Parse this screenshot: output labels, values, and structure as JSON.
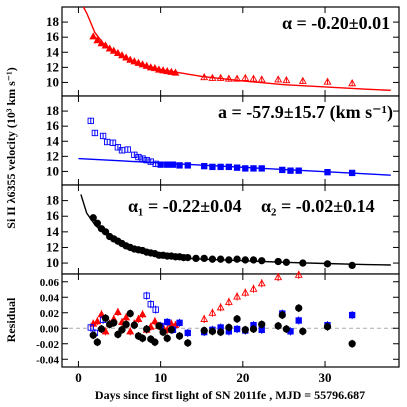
{
  "chart_data": [
    {
      "panel": 1,
      "type": "scatter",
      "color": "#ff0000",
      "annotation": "α = -0.20±0.01",
      "ylim": [
        8.2,
        20
      ],
      "yticks": [
        10,
        12,
        14,
        16,
        18
      ],
      "fit": {
        "model": "power-law",
        "points": [
          [
            0.6,
            20
          ],
          [
            1,
            19.2
          ],
          [
            2,
            16.6
          ],
          [
            3,
            15.2
          ],
          [
            4,
            14.3
          ],
          [
            5,
            13.6
          ],
          [
            7,
            12.6
          ],
          [
            10,
            11.7
          ],
          [
            15,
            10.8
          ],
          [
            20,
            10.2
          ],
          [
            25,
            9.7
          ],
          [
            30,
            9.4
          ],
          [
            35,
            9.1
          ],
          [
            38,
            8.95
          ]
        ]
      },
      "series": [
        {
          "marker": "filled-triangle",
          "x": [
            1.8,
            2.3,
            2.8,
            3.3,
            3.8,
            4.3,
            4.8,
            5.3,
            5.8,
            6.3,
            6.8,
            7.3,
            7.8,
            8.3,
            8.8,
            9.3,
            9.8,
            10.3,
            10.8,
            11.3,
            11.8
          ],
          "y": [
            16.1,
            15.6,
            15.2,
            14.9,
            14.5,
            14.2,
            13.9,
            13.6,
            13.3,
            13.0,
            12.8,
            12.6,
            12.4,
            12.2,
            12.0,
            11.9,
            11.7,
            11.6,
            11.5,
            11.4,
            11.3
          ]
        },
        {
          "marker": "open-triangle",
          "x": [
            15.3,
            16.3,
            17.3,
            18.3,
            19.3,
            20.3,
            21.3,
            22.3,
            24.3,
            25.3,
            27.3,
            30.3,
            33.3
          ],
          "y": [
            10.7,
            10.6,
            10.6,
            10.5,
            10.5,
            10.6,
            10.5,
            10.4,
            10.4,
            10.3,
            10.2,
            10.1,
            9.9
          ]
        }
      ]
    },
    {
      "panel": 2,
      "type": "scatter",
      "color": "#0000ff",
      "annotation": "a = -57.9±15.7 (km s⁻¹)",
      "ylim": [
        8.2,
        20
      ],
      "yticks": [
        10,
        12,
        14,
        16,
        18
      ],
      "fit": {
        "model": "linear",
        "points": [
          [
            0,
            11.7
          ],
          [
            38,
            9.5
          ]
        ]
      },
      "series": [
        {
          "marker": "open-square",
          "x": [
            1.5,
            2.0,
            3.0,
            3.5,
            4.2,
            4.8,
            5.3,
            6.0,
            6.8,
            7.3,
            7.8,
            8.3,
            8.8,
            9.4
          ],
          "y": [
            16.7,
            15.1,
            14.7,
            13.9,
            13.8,
            13.2,
            12.8,
            12.9,
            12.2,
            11.9,
            11.7,
            11.5,
            11.3,
            11.0
          ]
        },
        {
          "marker": "filled-square",
          "x": [
            10.0,
            10.8,
            11.5,
            12.3,
            13.3,
            15.3,
            16.3,
            17.3,
            18.3,
            19.3,
            20.3,
            21.3,
            22.3,
            24.8,
            25.8,
            26.8,
            30.3,
            33.3
          ],
          "y": [
            10.9,
            10.9,
            10.9,
            10.8,
            10.8,
            10.7,
            10.6,
            10.6,
            10.6,
            10.5,
            10.4,
            10.4,
            10.4,
            10.2,
            10.1,
            10.1,
            9.9,
            9.8
          ]
        }
      ]
    },
    {
      "panel": 3,
      "type": "scatter",
      "color": "#000000",
      "annotation_1": "α₁ = -0.22±0.04",
      "annotation_2": "α₂ = -0.02±0.14",
      "ylabel": "Si II λ6355 velocity (10³ km s⁻¹)",
      "ylim": [
        8.6,
        20
      ],
      "yticks": [
        10,
        12,
        14,
        16,
        18
      ],
      "fit": {
        "model": "broken power-law",
        "points": [
          [
            0.3,
            18.8
          ],
          [
            1,
            16.4
          ],
          [
            2,
            14.9
          ],
          [
            3,
            13.9
          ],
          [
            4,
            13.2
          ],
          [
            5,
            12.6
          ],
          [
            6,
            12.1
          ],
          [
            7,
            11.7
          ],
          [
            8,
            11.4
          ],
          [
            9,
            11.15
          ],
          [
            10,
            10.95
          ],
          [
            12,
            10.7
          ],
          [
            15,
            10.5
          ],
          [
            20,
            10.3
          ],
          [
            25,
            10.1
          ],
          [
            30,
            9.95
          ],
          [
            35,
            9.8
          ],
          [
            38,
            9.75
          ]
        ]
      },
      "series": [
        {
          "marker": "filled-circle",
          "x": [
            1.8,
            2.3,
            2.8,
            3.3,
            3.8,
            4.3,
            4.8,
            5.3,
            5.8,
            6.3,
            6.8,
            7.3,
            7.8,
            8.3,
            8.8,
            9.3,
            9.8,
            10.3,
            10.8,
            11.3,
            11.8,
            12.3,
            12.8,
            13.3,
            14.3,
            15.3,
            16.3,
            17.3,
            18.3,
            19.3,
            20.3,
            21.3,
            22.3,
            24.3,
            25.3,
            27.3,
            30.3,
            33.3
          ],
          "y": [
            15.8,
            15.1,
            14.4,
            14.0,
            13.4,
            13.1,
            12.8,
            12.5,
            12.2,
            12.0,
            11.8,
            11.7,
            11.6,
            11.4,
            11.3,
            11.2,
            11.0,
            11.0,
            10.9,
            10.9,
            10.8,
            10.8,
            10.7,
            10.7,
            10.6,
            10.6,
            10.5,
            10.5,
            10.4,
            10.5,
            10.4,
            10.4,
            10.3,
            10.2,
            10.1,
            10.0,
            9.9,
            9.7
          ]
        }
      ]
    },
    {
      "panel": 4,
      "type": "scatter",
      "ylabel": "Residual",
      "xlabel": "Days since first light of SN 2011fe , MJD = 55796.687",
      "ylim": [
        -0.05,
        0.07
      ],
      "yticks": [
        -0.04,
        -0.02,
        0.0,
        0.02,
        0.04,
        0.06
      ],
      "ytick_labels": [
        "-0.04",
        "-0.02",
        "0.00",
        "0.02",
        "0.04",
        "0.06"
      ],
      "xlim": [
        -2,
        39
      ],
      "xticks": [
        0,
        10,
        20,
        30
      ],
      "zero_line": true,
      "series": [
        {
          "color": "#ff0000",
          "marker": "filled-triangle",
          "x": [
            1.8,
            2.3,
            2.8,
            3.3,
            3.8,
            4.3,
            4.8,
            5.3,
            5.8,
            6.3,
            6.8,
            7.3,
            7.8,
            8.3,
            8.8,
            9.3,
            9.8,
            10.3,
            10.8,
            11.3,
            11.8
          ],
          "y": [
            0.006,
            0.009,
            0.018,
            -0.004,
            0.006,
            0.012,
            0.021,
            0.008,
            0.014,
            -0.004,
            0.006,
            0.012,
            0.018,
            -0.002,
            0.002,
            0.009,
            0.003,
            0.001,
            -0.002,
            0.006,
            0.004
          ]
        },
        {
          "color": "#ff0000",
          "marker": "open-triangle",
          "x": [
            15.3,
            16.3,
            17.3,
            18.3,
            19.3,
            20.3,
            21.3,
            22.3,
            24.3,
            26.8
          ],
          "y": [
            0.012,
            0.02,
            0.027,
            0.034,
            0.041,
            0.046,
            0.051,
            0.058,
            0.066,
            0.069
          ]
        },
        {
          "color": "#0000ff",
          "marker": "open-square",
          "x": [
            1.5,
            2.0,
            3.0,
            8.3,
            8.8,
            9.4
          ],
          "y": [
            0.001,
            -0.006,
            0.011,
            0.042,
            0.031,
            0.024
          ]
        },
        {
          "color": "#0000ff",
          "marker": "filled-square",
          "x": [
            10.0,
            10.8,
            11.5,
            12.3,
            13.3,
            15.3,
            16.3,
            17.3,
            18.3,
            19.3,
            20.3,
            21.3,
            22.3,
            24.8,
            25.8,
            26.8,
            30.3,
            33.3
          ],
          "y": [
            0.003,
            0.008,
            -0.002,
            0.007,
            -0.006,
            -0.005,
            -0.002,
            0.001,
            -0.004,
            -0.001,
            -0.003,
            0.004,
            -0.002,
            0.019,
            -0.004,
            0.01,
            0.004,
            0.017
          ]
        },
        {
          "color": "#000000",
          "marker": "filled-circle",
          "x": [
            1.8,
            2.3,
            2.8,
            3.3,
            3.8,
            4.3,
            4.8,
            5.3,
            5.8,
            6.3,
            6.8,
            7.3,
            7.8,
            8.3,
            8.8,
            9.3,
            9.8,
            10.3,
            10.8,
            11.3,
            12.3,
            13.3,
            15.3,
            16.3,
            17.3,
            18.3,
            19.3,
            20.3,
            21.3,
            22.3,
            24.3,
            24.8,
            25.3,
            26.8,
            27.3,
            30.3,
            33.3
          ],
          "y": [
            -0.009,
            -0.018,
            -0.001,
            0.013,
            0.005,
            0.007,
            -0.008,
            -0.002,
            0.005,
            0.019,
            0.004,
            -0.01,
            -0.013,
            -0.001,
            -0.014,
            -0.018,
            0.003,
            -0.005,
            -0.013,
            -0.002,
            -0.01,
            -0.019,
            -0.003,
            -0.004,
            -0.005,
            0.001,
            0.012,
            -0.002,
            -0.001,
            0.005,
            0.003,
            0.017,
            -0.001,
            0.026,
            -0.004,
            0.002,
            -0.02
          ]
        }
      ]
    }
  ]
}
